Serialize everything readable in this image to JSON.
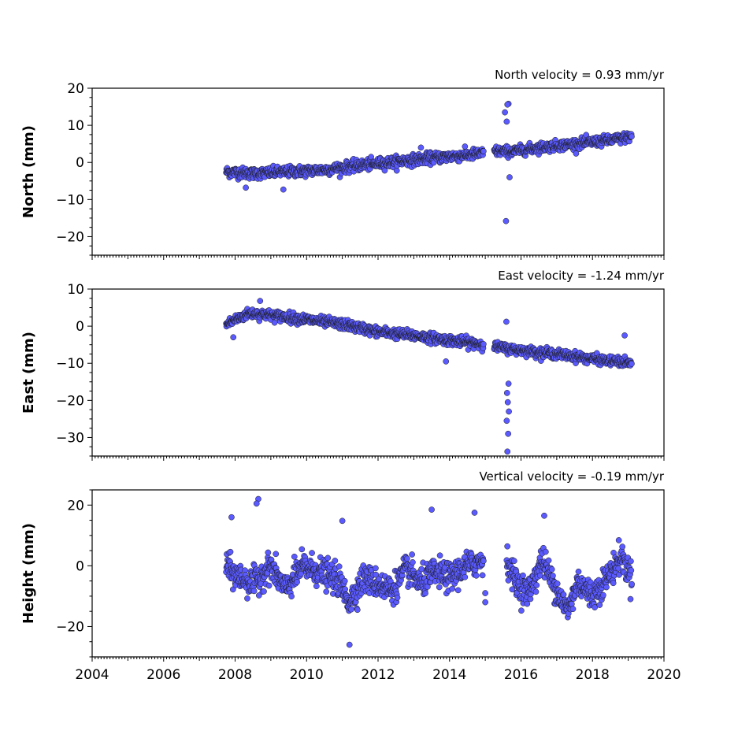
{
  "chart_data": [
    {
      "type": "scatter",
      "title": "North velocity = 0.93 mm/yr",
      "ylabel": "North (mm)",
      "xlim": [
        2004,
        2020
      ],
      "ylim": [
        -25,
        20
      ],
      "yticks": [
        -20,
        -10,
        0,
        10,
        20
      ],
      "yticklabels": [
        "−20",
        "−10",
        "0",
        "10",
        "20"
      ],
      "xticks": [
        2004,
        2006,
        2008,
        2010,
        2012,
        2014,
        2016,
        2018,
        2020
      ],
      "xticklabels": [],
      "marker_color": "#5a5aff",
      "edge_color": "#1a1a1a",
      "grid": false,
      "segments": [
        {
          "x": [
            2007.75,
            2008.5,
            2009.5,
            2010.5,
            2011.5,
            2012.5,
            2013.5,
            2014.5,
            2014.95
          ],
          "y": [
            -2.5,
            -3.0,
            -2.5,
            -2.0,
            -0.8,
            0.2,
            1.2,
            2.0,
            2.5
          ],
          "spread": 1.3
        },
        {
          "x": [
            2015.25,
            2015.5,
            2015.8,
            2016.5,
            2017.5,
            2018.5,
            2019.1
          ],
          "y": [
            3.0,
            3.0,
            3.0,
            4.0,
            5.0,
            6.0,
            7.0
          ],
          "spread": 1.2
        }
      ],
      "outliers": {
        "x": [
          2015.65,
          2015.62,
          2015.55,
          2015.6,
          2015.58,
          2015.68,
          2008.3,
          2009.35,
          2013.2
        ],
        "y": [
          15.8,
          15.6,
          13.5,
          11.0,
          -15.8,
          -4.0,
          -6.8,
          -7.3,
          4.0
        ]
      }
    },
    {
      "type": "scatter",
      "title": "East velocity = -1.24 mm/yr",
      "ylabel": "East (mm)",
      "xlim": [
        2004,
        2020
      ],
      "ylim": [
        -35,
        10
      ],
      "yticks": [
        -30,
        -20,
        -10,
        0,
        10
      ],
      "yticklabels": [
        "−30",
        "−20",
        "−10",
        "0",
        "10"
      ],
      "xticks": [
        2004,
        2006,
        2008,
        2010,
        2012,
        2014,
        2016,
        2018,
        2020
      ],
      "xticklabels": [],
      "marker_color": "#5a5aff",
      "edge_color": "#1a1a1a",
      "grid": false,
      "segments": [
        {
          "x": [
            2007.75,
            2007.95,
            2008.4,
            2009.0,
            2010.0,
            2011.0,
            2012.0,
            2013.0,
            2014.0,
            2014.95
          ],
          "y": [
            0.5,
            1.5,
            3.5,
            3.0,
            1.8,
            0.5,
            -1.5,
            -2.5,
            -3.8,
            -4.8
          ],
          "spread": 1.2
        },
        {
          "x": [
            2015.25,
            2015.6,
            2016.0,
            2017.0,
            2018.0,
            2019.1
          ],
          "y": [
            -5.5,
            -6.0,
            -6.5,
            -7.5,
            -8.8,
            -10.0
          ],
          "spread": 1.1
        }
      ],
      "outliers": {
        "x": [
          2015.62,
          2015.64,
          2015.6,
          2015.66,
          2015.63,
          2015.61,
          2015.65,
          2015.59,
          2008.7,
          2013.9,
          2018.9,
          2007.95
        ],
        "y": [
          -33.8,
          -29.0,
          -25.5,
          -23.0,
          -20.5,
          -18.0,
          -15.5,
          1.2,
          6.8,
          -9.5,
          -2.5,
          -3.0
        ]
      }
    },
    {
      "type": "scatter",
      "title": "Vertical velocity = -0.19 mm/yr",
      "ylabel": "Height (mm)",
      "xlim": [
        2004,
        2020
      ],
      "ylim": [
        -30,
        25
      ],
      "yticks": [
        -20,
        0,
        20
      ],
      "yticklabels": [
        "−20",
        "0",
        "20"
      ],
      "xticks": [
        2004,
        2006,
        2008,
        2010,
        2012,
        2014,
        2016,
        2018,
        2020
      ],
      "xticklabels": [
        "2004",
        "2006",
        "2008",
        "2010",
        "2012",
        "2014",
        "2016",
        "2018",
        "2020"
      ],
      "marker_color": "#5a5aff",
      "edge_color": "#1a1a1a",
      "grid": false,
      "segments": [
        {
          "x": [
            2007.75,
            2008.0,
            2008.5,
            2009.0,
            2009.4,
            2009.9,
            2010.4,
            2010.9,
            2011.2,
            2011.6,
            2012.0,
            2012.4,
            2012.8,
            2013.2,
            2013.6,
            2014.0,
            2014.5,
            2014.95
          ],
          "y": [
            0,
            -3,
            -6,
            0,
            -8,
            0,
            -2,
            -5,
            -12,
            -4,
            -6,
            -8,
            -1,
            -6,
            -2,
            -4,
            0,
            2
          ],
          "spread": 4.2
        },
        {
          "x": [
            2015.6,
            2015.9,
            2016.2,
            2016.6,
            2017.0,
            2017.3,
            2017.6,
            2018.0,
            2018.4,
            2018.8,
            2019.1
          ],
          "y": [
            2,
            -6,
            -9,
            2,
            -8,
            -15,
            -5,
            -10,
            -4,
            3,
            -4
          ],
          "spread": 4.2
        }
      ],
      "outliers": {
        "x": [
          2008.65,
          2008.6,
          2011.2,
          2013.5,
          2014.7,
          2016.65,
          2007.9,
          2015.0,
          2015.0,
          2011.0
        ],
        "y": [
          22,
          20.5,
          -26,
          18.5,
          17.5,
          16.5,
          16,
          -9,
          -12,
          14.8
        ]
      }
    }
  ]
}
